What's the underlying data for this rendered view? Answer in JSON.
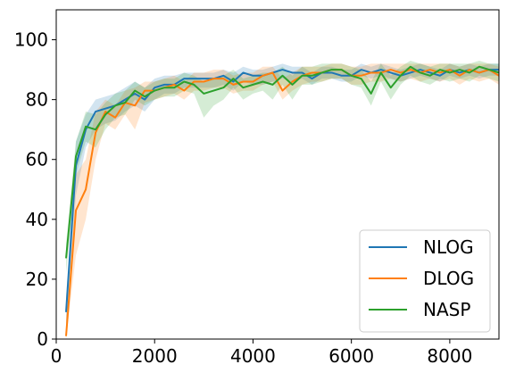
{
  "chart_data": {
    "type": "line",
    "title": "",
    "xlabel": "",
    "ylabel": "",
    "xlim": [
      0,
      9000
    ],
    "ylim": [
      0,
      110
    ],
    "xticks": [
      0,
      2000,
      4000,
      6000,
      8000
    ],
    "yticks": [
      0,
      20,
      40,
      60,
      80,
      100
    ],
    "grid": false,
    "legend_position": "lower-right",
    "x": [
      200,
      400,
      600,
      800,
      1000,
      1200,
      1400,
      1600,
      1800,
      2000,
      2200,
      2400,
      2600,
      2800,
      3000,
      3200,
      3400,
      3600,
      3800,
      4000,
      4200,
      4400,
      4600,
      4800,
      5000,
      5200,
      5400,
      5600,
      5800,
      6000,
      6200,
      6400,
      6600,
      6800,
      7000,
      7200,
      7400,
      7600,
      7800,
      8000,
      8200,
      8400,
      8600,
      8800,
      9000
    ],
    "series": [
      {
        "name": "NLOG",
        "color": "#1f77b4",
        "values": [
          9,
          58,
          70,
          76,
          77,
          78,
          80,
          82,
          80,
          84,
          85,
          85,
          87,
          87,
          87,
          87,
          88,
          86,
          89,
          88,
          88,
          89,
          90,
          89,
          89,
          87,
          89,
          89,
          88,
          88,
          90,
          89,
          90,
          89,
          88,
          89,
          90,
          89,
          88,
          90,
          89,
          90,
          89,
          90,
          90
        ],
        "lower": [
          4,
          48,
          64,
          70,
          72,
          73,
          76,
          78,
          76,
          80,
          82,
          82,
          84,
          84,
          84,
          84,
          85,
          83,
          86,
          85,
          85,
          86,
          87,
          86,
          87,
          85,
          87,
          87,
          86,
          86,
          88,
          87,
          88,
          87,
          86,
          87,
          88,
          87,
          86,
          88,
          87,
          88,
          87,
          88,
          88
        ],
        "upper": [
          14,
          66,
          75,
          80,
          81,
          82,
          84,
          86,
          84,
          87,
          88,
          88,
          89,
          89,
          89,
          89,
          90,
          89,
          91,
          90,
          90,
          91,
          92,
          91,
          91,
          89,
          91,
          91,
          90,
          90,
          92,
          91,
          92,
          91,
          90,
          91,
          92,
          91,
          90,
          92,
          91,
          92,
          91,
          92,
          92
        ]
      },
      {
        "name": "DLOG",
        "color": "#ff7f0e",
        "values": [
          1,
          43,
          50,
          69,
          76,
          74,
          79,
          78,
          83,
          83,
          84,
          85,
          83,
          86,
          86,
          87,
          87,
          85,
          86,
          86,
          88,
          89,
          83,
          86,
          88,
          89,
          89,
          90,
          90,
          88,
          88,
          89,
          89,
          90,
          89,
          90,
          89,
          90,
          89,
          90,
          88,
          90,
          89,
          90,
          88
        ],
        "lower": [
          0,
          28,
          40,
          60,
          72,
          70,
          75,
          70,
          79,
          80,
          81,
          82,
          80,
          83,
          83,
          84,
          84,
          82,
          83,
          83,
          85,
          86,
          80,
          83,
          85,
          86,
          86,
          87,
          87,
          85,
          85,
          86,
          86,
          87,
          86,
          87,
          86,
          87,
          86,
          87,
          85,
          87,
          86,
          87,
          85
        ],
        "upper": [
          8,
          55,
          60,
          76,
          80,
          78,
          83,
          84,
          86,
          86,
          87,
          88,
          86,
          89,
          89,
          90,
          90,
          88,
          89,
          89,
          91,
          91,
          87,
          89,
          91,
          91,
          91,
          92,
          92,
          91,
          91,
          92,
          92,
          92,
          92,
          92,
          92,
          92,
          92,
          92,
          91,
          92,
          92,
          92,
          91
        ]
      },
      {
        "name": "NASP",
        "color": "#2ca02c",
        "values": [
          27,
          61,
          71,
          70,
          75,
          78,
          79,
          83,
          81,
          83,
          84,
          84,
          86,
          85,
          82,
          83,
          84,
          87,
          84,
          85,
          86,
          85,
          88,
          85,
          88,
          88,
          89,
          90,
          90,
          88,
          87,
          82,
          89,
          84,
          88,
          91,
          89,
          88,
          90,
          89,
          90,
          89,
          91,
          90,
          89
        ],
        "lower": [
          22,
          55,
          66,
          64,
          70,
          74,
          75,
          80,
          78,
          80,
          81,
          81,
          83,
          82,
          74,
          78,
          80,
          84,
          80,
          82,
          83,
          80,
          85,
          80,
          85,
          85,
          86,
          87,
          87,
          85,
          84,
          78,
          86,
          80,
          85,
          88,
          86,
          85,
          87,
          86,
          87,
          86,
          88,
          87,
          86
        ],
        "upper": [
          32,
          66,
          76,
          75,
          79,
          82,
          83,
          86,
          84,
          86,
          87,
          87,
          89,
          88,
          86,
          87,
          88,
          90,
          87,
          88,
          89,
          89,
          91,
          88,
          91,
          91,
          92,
          92,
          92,
          91,
          90,
          86,
          92,
          88,
          91,
          93,
          92,
          91,
          92,
          92,
          92,
          92,
          93,
          92,
          92
        ]
      }
    ]
  }
}
